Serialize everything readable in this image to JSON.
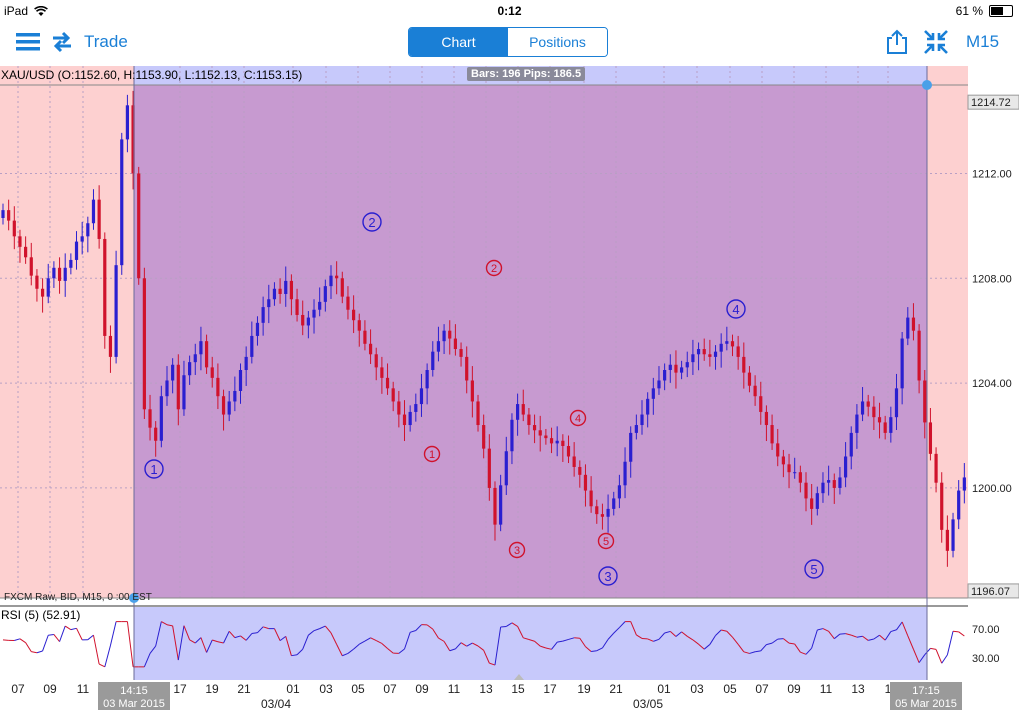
{
  "status_bar": {
    "device": "iPad",
    "time": "0:12",
    "battery": "61 %",
    "battery_level": 0.61
  },
  "toolbar": {
    "trade_label": "Trade",
    "tabs": [
      {
        "label": "Chart",
        "active": true
      },
      {
        "label": "Positions",
        "active": false
      }
    ],
    "timeframe": "M15"
  },
  "chart": {
    "ohlc_label": "XAU/USD (O:1152.60, H:1153.90, L:1152.13, C:1153.15)",
    "selection_info": "Bars: 196 Pips: 186.5",
    "feed_info": "FXCM Raw, BID, M15, 0  :00 EST",
    "rsi_label": "RSI (5)  (52.91)",
    "selection_start_label": {
      "time": "14:15",
      "date": "03 Mar 2015"
    },
    "selection_end_label": {
      "time": "17:15",
      "date": "05 Mar 2015"
    },
    "colors": {
      "up": "#2a1fd0",
      "down": "#d0122c",
      "selection": "#c79ad0",
      "background_shade": "#fdd0d0",
      "rsi_selection": "#c7c9fb",
      "accent": "#1a7fd6"
    }
  },
  "chart_data": {
    "type": "candlestick",
    "symbol": "XAU/USD",
    "timeframe": "M15",
    "y_ticks": [
      "1200.00",
      "1204.00",
      "1208.00",
      "1212.00"
    ],
    "price_labels": [
      "1214.72",
      "1196.07"
    ],
    "ylim": [
      1195.8,
      1216.1
    ],
    "x_ticks": [
      "07",
      "09",
      "11",
      "17",
      "19",
      "21",
      "01",
      "03",
      "05",
      "07",
      "09",
      "11",
      "13",
      "15",
      "17",
      "19",
      "21",
      "01",
      "03",
      "05",
      "07",
      "09",
      "11",
      "13",
      "1"
    ],
    "date_labels": [
      "03/04",
      "03/05"
    ],
    "closes": [
      1210.6,
      1210.2,
      1209.6,
      1209.2,
      1208.8,
      1208.1,
      1207.6,
      1207.3,
      1208.0,
      1208.4,
      1207.9,
      1208.4,
      1208.7,
      1209.4,
      1209.6,
      1210.1,
      1211.0,
      1209.5,
      1205.8,
      1205.0,
      1208.5,
      1213.3,
      1214.6,
      1212.0,
      1208.0,
      1203.0,
      1202.3,
      1201.8,
      1203.5,
      1204.1,
      1204.7,
      1203.0,
      1204.3,
      1204.8,
      1205.1,
      1205.6,
      1204.6,
      1204.2,
      1203.5,
      1202.8,
      1203.3,
      1203.7,
      1204.5,
      1205.0,
      1205.8,
      1206.3,
      1206.9,
      1207.2,
      1207.6,
      1207.4,
      1207.9,
      1207.2,
      1206.6,
      1206.2,
      1206.5,
      1206.8,
      1207.1,
      1207.7,
      1208.1,
      1208.0,
      1207.3,
      1206.8,
      1206.4,
      1206.0,
      1205.5,
      1205.1,
      1204.6,
      1204.2,
      1203.8,
      1203.3,
      1202.8,
      1202.4,
      1202.9,
      1203.2,
      1203.8,
      1204.5,
      1205.2,
      1205.6,
      1206.0,
      1205.7,
      1205.3,
      1205.0,
      1204.1,
      1203.3,
      1202.4,
      1201.5,
      1200.0,
      1198.6,
      1200.1,
      1201.4,
      1202.6,
      1203.2,
      1202.8,
      1202.4,
      1202.2,
      1202.0,
      1201.9,
      1201.7,
      1201.8,
      1201.6,
      1201.2,
      1200.8,
      1200.5,
      1199.9,
      1199.3,
      1199.0,
      1198.9,
      1199.2,
      1199.6,
      1200.1,
      1201.0,
      1202.1,
      1202.4,
      1202.8,
      1203.4,
      1203.8,
      1204.1,
      1204.5,
      1204.7,
      1204.4,
      1204.6,
      1204.8,
      1205.1,
      1205.3,
      1205.1,
      1205.0,
      1205.2,
      1205.5,
      1205.6,
      1205.4,
      1205.0,
      1204.4,
      1203.9,
      1203.5,
      1202.9,
      1202.4,
      1201.7,
      1201.2,
      1200.9,
      1200.6,
      1200.6,
      1200.2,
      1199.6,
      1199.2,
      1199.8,
      1200.2,
      1200.3,
      1200.0,
      1200.4,
      1201.2,
      1202.1,
      1202.8,
      1203.3,
      1203.1,
      1202.7,
      1202.5,
      1202.1,
      1202.7,
      1203.8,
      1205.7,
      1206.5,
      1206.0,
      1204.1,
      1202.5,
      1201.3,
      1200.2,
      1198.4,
      1197.6,
      1198.8,
      1199.9,
      1200.4
    ]
  }
}
